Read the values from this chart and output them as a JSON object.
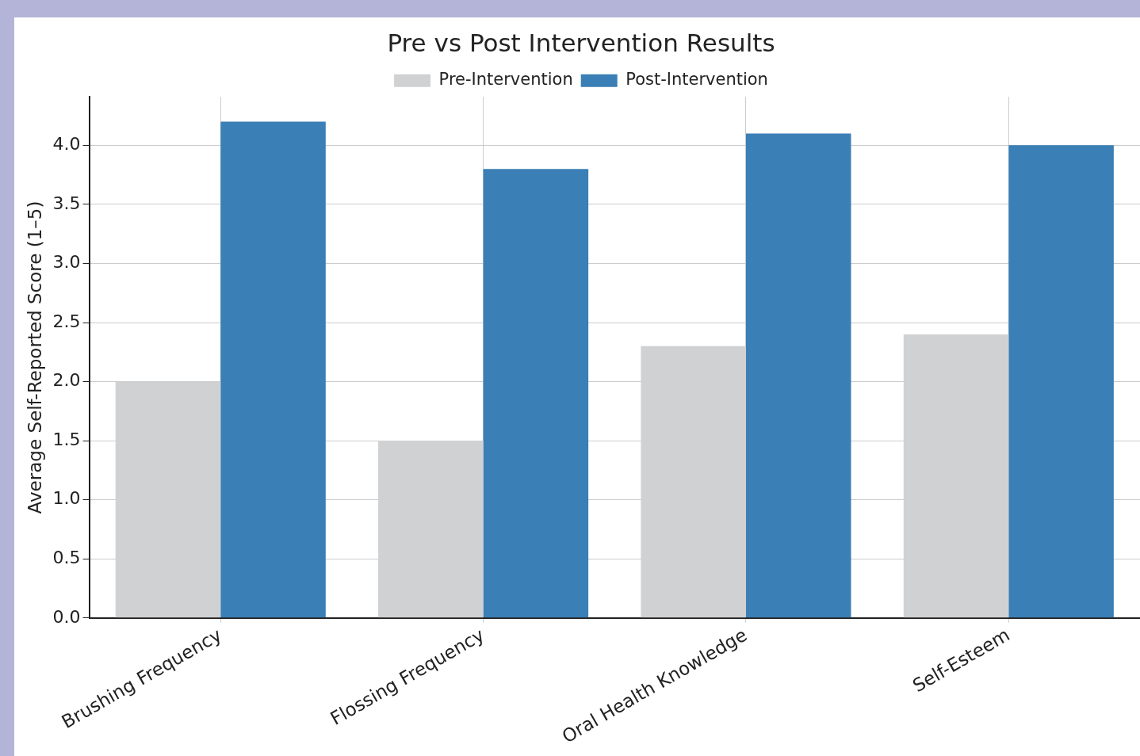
{
  "chart_data": {
    "type": "bar",
    "title": "Pre vs Post Intervention Results",
    "ylabel": "Average Self-Reported Score (1–5)",
    "categories": [
      "Brushing Frequency",
      "Flossing Frequency",
      "Oral Health Knowledge",
      "Self-Esteem"
    ],
    "series": [
      {
        "name": "Pre-Intervention",
        "color": "#d0d1d3",
        "values": [
          2.0,
          1.5,
          2.3,
          2.4
        ]
      },
      {
        "name": "Post-Intervention",
        "color": "#3a7fb5",
        "values": [
          4.2,
          3.8,
          4.1,
          4.0
        ]
      }
    ],
    "ylim": [
      0,
      4.41
    ],
    "yticks": [
      {
        "value": 0,
        "label": "0.0"
      },
      {
        "value": 0.5,
        "label": "0.5"
      },
      {
        "value": 1,
        "label": "1.0"
      },
      {
        "value": 1.5,
        "label": "1.5"
      },
      {
        "value": 2,
        "label": "2.0"
      },
      {
        "value": 2.5,
        "label": "2.5"
      },
      {
        "value": 3,
        "label": "3.0"
      },
      {
        "value": 3.5,
        "label": "3.5"
      },
      {
        "value": 4,
        "label": "4.0"
      }
    ],
    "grid": true,
    "legend": "top"
  }
}
